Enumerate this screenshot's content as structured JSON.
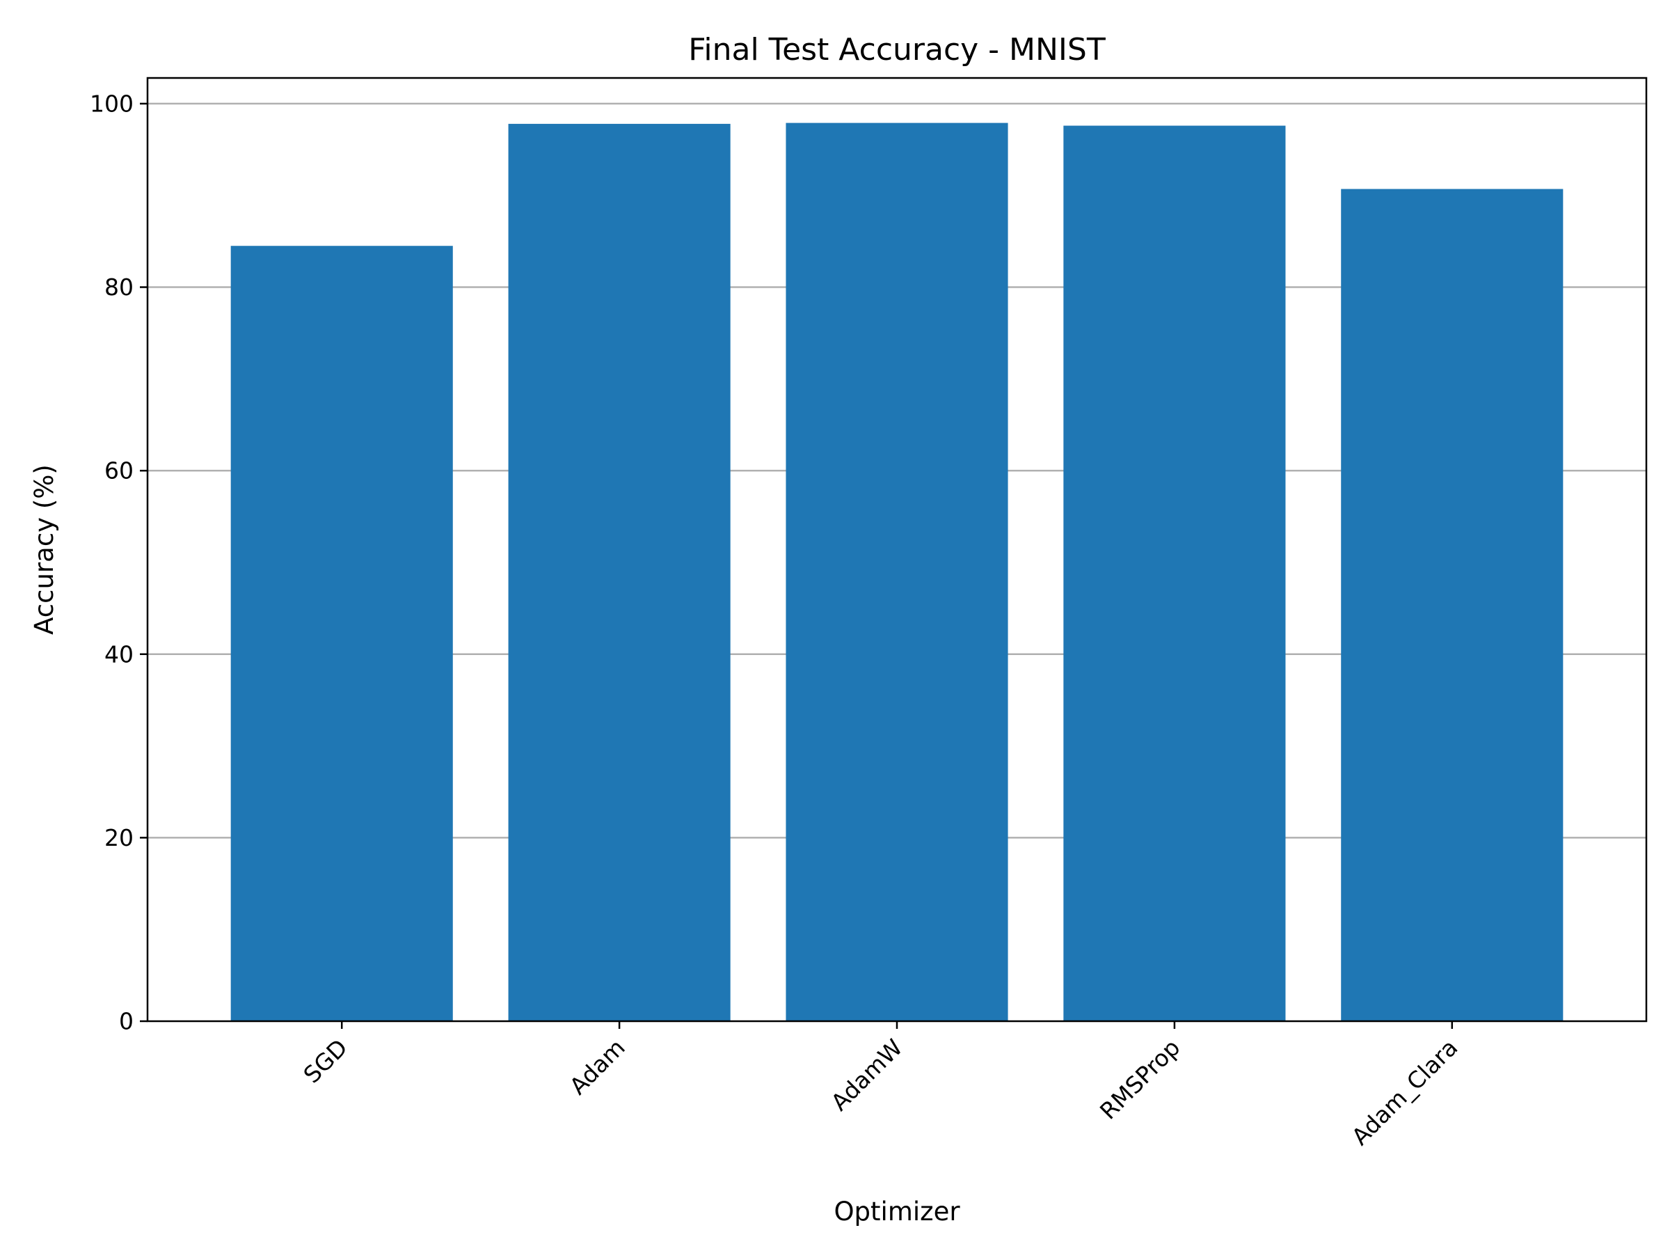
{
  "chart_data": {
    "type": "bar",
    "title": "Final Test Accuracy - MNIST",
    "xlabel": "Optimizer",
    "ylabel": "Accuracy (%)",
    "categories": [
      "SGD",
      "Adam",
      "AdamW",
      "RMSProp",
      "Adam_Clara"
    ],
    "values": [
      84.5,
      97.8,
      97.9,
      97.6,
      90.7
    ],
    "ylim": [
      0,
      102.8
    ],
    "yticks": [
      0,
      20,
      40,
      60,
      80,
      100
    ],
    "ytick_labels": [
      "0",
      "20",
      "40",
      "60",
      "80",
      "100"
    ],
    "grid": "y-axis horizontal lines",
    "bar_color": "#1f77b4",
    "grid_color": "#b0b0b0",
    "xtick_rotation_deg": 45
  }
}
